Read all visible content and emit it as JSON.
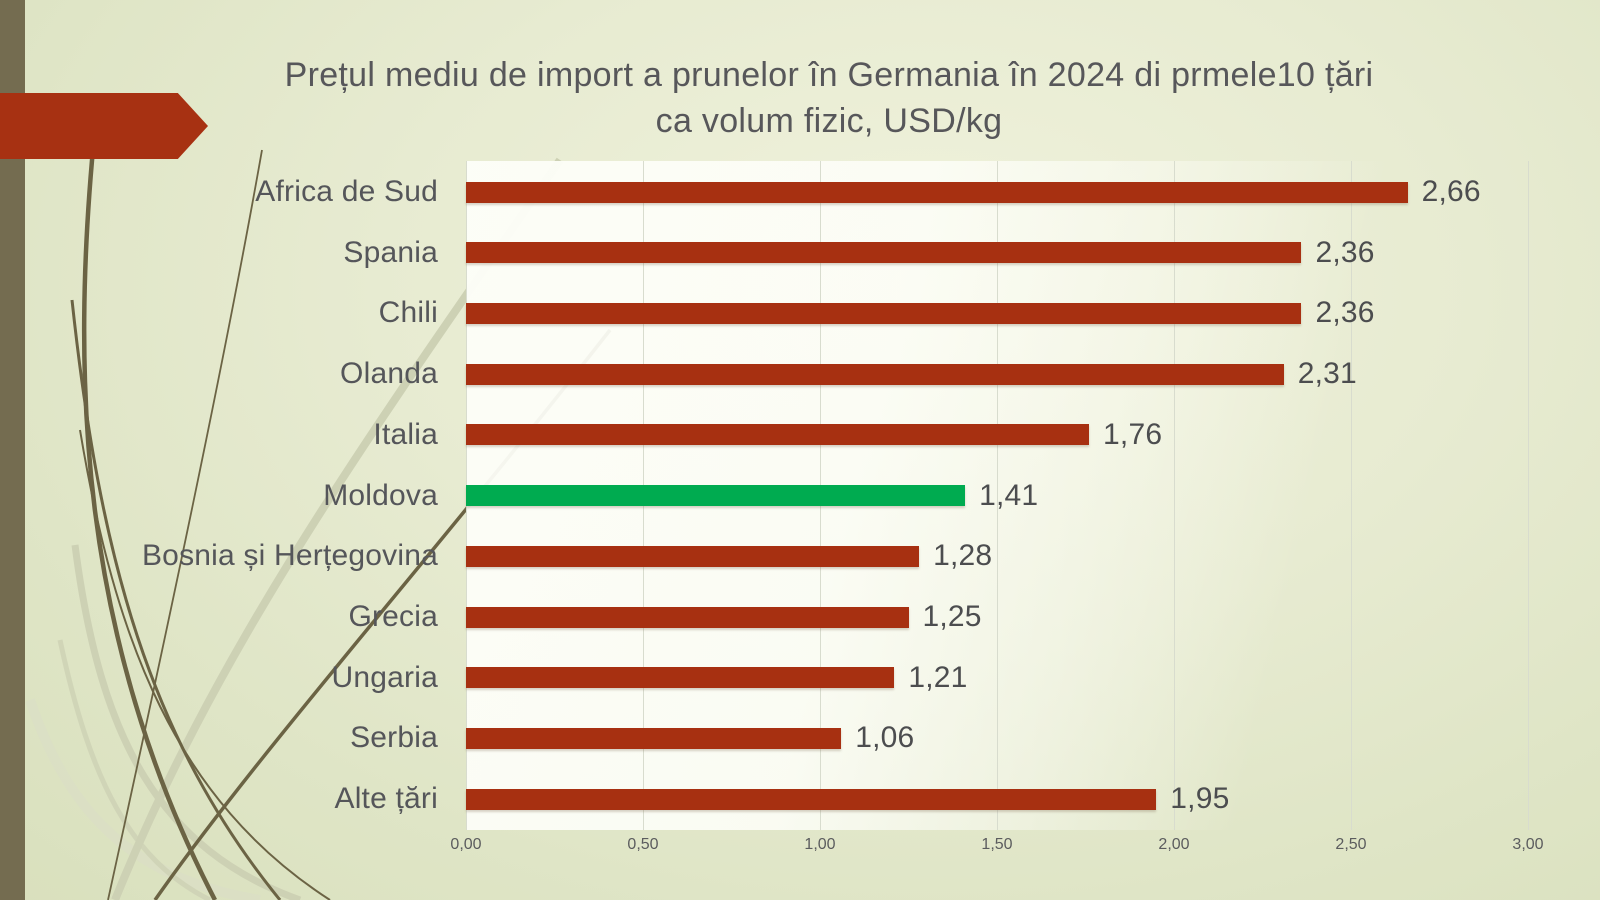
{
  "slide": {
    "title_line1": "Prețul mediu de import a prunelor în Germania în 2024 di prmele10 țări",
    "title_line2": "ca volum fizic, USD/kg"
  },
  "colors": {
    "background_edge": "#dce3c4",
    "background_center": "#f0f2dc",
    "side_strip": "#746c50",
    "arrow": "#a73112",
    "bar": "#a73011",
    "bar_highlight": "#00ab50",
    "gridline": "#d8dcce",
    "title_text": "#57575a",
    "category_text": "#55565a",
    "value_text": "#4c4d4f",
    "tick_text": "#5b5c5e",
    "ornament_dark": "#6b6344",
    "ornament_light": "#cdd1b4"
  },
  "chart_data": {
    "type": "bar",
    "orientation": "horizontal",
    "title": "Prețul mediu de import a prunelor în Germania în 2024 di prmele10 țări ca volum fizic, USD/kg",
    "categories": [
      "Africa de Sud",
      "Spania",
      "Chili",
      "Olanda",
      "Italia",
      "Moldova",
      "Bosnia și Herțegovina",
      "Grecia",
      "Ungaria",
      "Serbia",
      "Alte țări"
    ],
    "values": [
      2.66,
      2.36,
      2.36,
      2.31,
      1.76,
      1.41,
      1.28,
      1.25,
      1.21,
      1.06,
      1.95
    ],
    "value_labels": [
      "2,66",
      "2,36",
      "2,36",
      "2,31",
      "1,76",
      "1,41",
      "1,28",
      "1,25",
      "1,21",
      "1,06",
      "1,95"
    ],
    "highlight_category": "Moldova",
    "highlight_index": 5,
    "xlabel": "",
    "ylabel": "",
    "xlim": [
      0,
      3
    ],
    "x_tick_values": [
      0.0,
      0.5,
      1.0,
      1.5,
      2.0,
      2.5,
      3.0
    ],
    "x_tick_labels": [
      "0,00",
      "0,50",
      "1,00",
      "1,50",
      "2,00",
      "2,50",
      "3,00"
    ],
    "grid": true,
    "legend": false,
    "value_labels_position": "end-of-bar"
  }
}
